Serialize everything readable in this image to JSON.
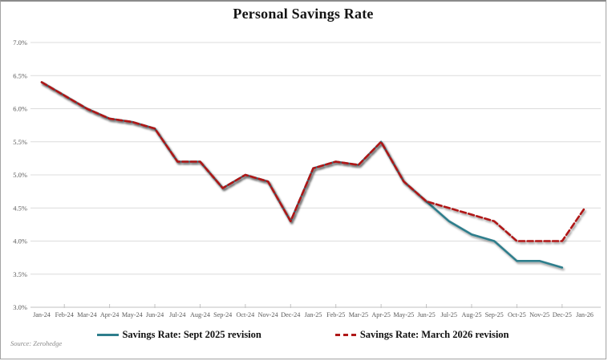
{
  "chart": {
    "title": "Personal Savings Rate"
  },
  "legend": {
    "items": [
      {
        "label": "Savings Rate: Sept 2025 revision",
        "color": "#2e7e8c",
        "style": "solid"
      },
      {
        "label": "Savings Rate: March 2026 revision",
        "color": "#b01818",
        "style": "dashed"
      }
    ]
  },
  "footer": {
    "source": "Source: Zerohedge"
  },
  "colors": {
    "teal_line": "#2e7e8c",
    "red_line": "#b01818",
    "gridline": "#dcdcdc",
    "axis_line": "#c2c2c2",
    "tick_label": "#595959",
    "title_text": "#141414"
  },
  "chart_data": {
    "type": "line",
    "title": "Personal Savings Rate",
    "x": [
      "Jan-24",
      "Feb-24",
      "Mar-24",
      "Apr-24",
      "May-24",
      "Jun-24",
      "Jul-24",
      "Aug-24",
      "Sep-24",
      "Oct-24",
      "Nov-24",
      "Dec-24",
      "Jan-25",
      "Feb-25",
      "Mar-25",
      "Apr-25",
      "May-25",
      "Jun-25",
      "Jul-25",
      "Aug-25",
      "Sep-25",
      "Oct-25",
      "Nov-25",
      "Dec-25",
      "Jan-26"
    ],
    "series": [
      {
        "name": "Savings Rate: Sept 2025 revision",
        "color": "#2e7e8c",
        "line_style": "solid",
        "values": [
          6.4,
          6.2,
          6.0,
          5.85,
          5.8,
          5.7,
          5.2,
          5.2,
          4.8,
          5.0,
          4.9,
          4.3,
          5.1,
          5.2,
          5.15,
          5.5,
          4.9,
          4.6,
          4.3,
          4.1,
          4.0,
          3.7,
          3.7,
          3.6,
          null
        ]
      },
      {
        "name": "Savings Rate: March 2026 revision",
        "color": "#b01818",
        "line_style": "dashed",
        "values": [
          6.4,
          6.2,
          6.0,
          5.85,
          5.8,
          5.7,
          5.2,
          5.2,
          4.8,
          5.0,
          4.9,
          4.3,
          5.1,
          5.2,
          5.15,
          5.5,
          4.9,
          4.6,
          4.5,
          4.4,
          4.3,
          4.0,
          4.0,
          4.0,
          4.5
        ]
      }
    ],
    "ylim": [
      3.0,
      7.0
    ],
    "ytick_step": 0.5,
    "yticks": [
      "7.0%",
      "6.5%",
      "6.0%",
      "5.5%",
      "5.0%",
      "4.5%",
      "4.0%",
      "3.5%",
      "3.0%"
    ],
    "grid": "horizontal",
    "legend_position": "bottom",
    "source": "Source: Zerohedge"
  }
}
